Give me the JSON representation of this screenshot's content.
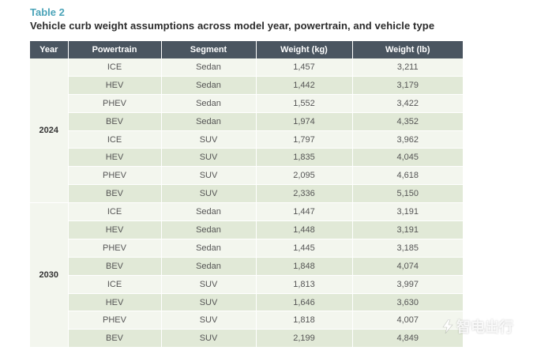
{
  "header": {
    "label": "Table 2",
    "title": "Vehicle curb weight assumptions across model year, powertrain, and vehicle type"
  },
  "table": {
    "columns": [
      "Year",
      "Powertrain",
      "Segment",
      "Weight (kg)",
      "Weight (lb)"
    ],
    "groups": [
      {
        "year": "2024",
        "rows": [
          [
            "ICE",
            "Sedan",
            "1,457",
            "3,211"
          ],
          [
            "HEV",
            "Sedan",
            "1,442",
            "3,179"
          ],
          [
            "PHEV",
            "Sedan",
            "1,552",
            "3,422"
          ],
          [
            "BEV",
            "Sedan",
            "1,974",
            "4,352"
          ],
          [
            "ICE",
            "SUV",
            "1,797",
            "3,962"
          ],
          [
            "HEV",
            "SUV",
            "1,835",
            "4,045"
          ],
          [
            "PHEV",
            "SUV",
            "2,095",
            "4,618"
          ],
          [
            "BEV",
            "SUV",
            "2,336",
            "5,150"
          ]
        ]
      },
      {
        "year": "2030",
        "rows": [
          [
            "ICE",
            "Sedan",
            "1,447",
            "3,191"
          ],
          [
            "HEV",
            "Sedan",
            "1,448",
            "3,191"
          ],
          [
            "PHEV",
            "Sedan",
            "1,445",
            "3,185"
          ],
          [
            "BEV",
            "Sedan",
            "1,848",
            "4,074"
          ],
          [
            "ICE",
            "SUV",
            "1,813",
            "3,997"
          ],
          [
            "HEV",
            "SUV",
            "1,646",
            "3,630"
          ],
          [
            "PHEV",
            "SUV",
            "1,818",
            "4,007"
          ],
          [
            "BEV",
            "SUV",
            "2,199",
            "4,849"
          ]
        ]
      }
    ]
  },
  "watermark": {
    "text": "智电出行",
    "icon": "lightning-bolt-icon"
  },
  "colors": {
    "label_accent": "#4aa3b8",
    "header_bg": "#4a5560",
    "row_light": "#f3f6ee",
    "row_dark": "#e1e9d7"
  }
}
